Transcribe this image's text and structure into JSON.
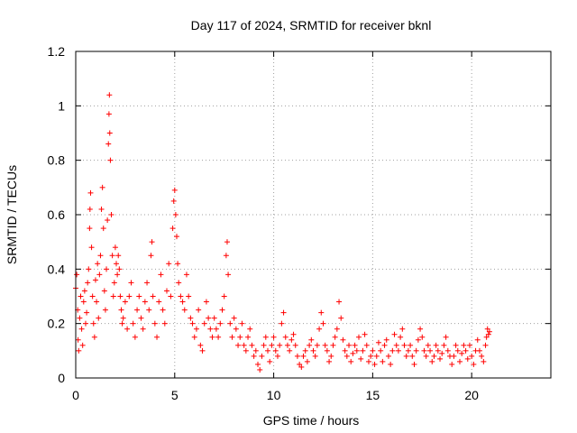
{
  "chart_data": {
    "type": "scatter",
    "title": "Day 117 of 2024, SRMTID for receiver bknl",
    "xlabel": "GPS time / hours",
    "ylabel": "SRMTID / TECUs",
    "xlim": [
      0,
      24
    ],
    "ylim": [
      0,
      1.2
    ],
    "xticks": [
      0,
      5,
      10,
      15,
      20
    ],
    "xtick_labels": [
      "0",
      "5",
      "10",
      "15",
      "20"
    ],
    "yticks": [
      0,
      0.2,
      0.4,
      0.6,
      0.8,
      1.0,
      1.2
    ],
    "ytick_labels": [
      "0",
      "0.2",
      "0.4",
      "0.6",
      "0.8",
      "1",
      "1.2"
    ],
    "grid": true,
    "marker": "+",
    "color": "#ff0000",
    "series": [
      {
        "name": "SRMTID",
        "points": [
          [
            0.0,
            0.33
          ],
          [
            0.05,
            0.38
          ],
          [
            0.1,
            0.25
          ],
          [
            0.12,
            0.14
          ],
          [
            0.15,
            0.1
          ],
          [
            0.2,
            0.22
          ],
          [
            0.25,
            0.3
          ],
          [
            0.3,
            0.18
          ],
          [
            0.35,
            0.12
          ],
          [
            0.4,
            0.28
          ],
          [
            0.45,
            0.32
          ],
          [
            0.5,
            0.2
          ],
          [
            0.55,
            0.24
          ],
          [
            0.6,
            0.35
          ],
          [
            0.65,
            0.4
          ],
          [
            0.7,
            0.55
          ],
          [
            0.72,
            0.62
          ],
          [
            0.75,
            0.68
          ],
          [
            0.8,
            0.48
          ],
          [
            0.85,
            0.3
          ],
          [
            0.9,
            0.2
          ],
          [
            0.95,
            0.15
          ],
          [
            1.0,
            0.36
          ],
          [
            1.05,
            0.28
          ],
          [
            1.1,
            0.42
          ],
          [
            1.15,
            0.22
          ],
          [
            1.2,
            0.38
          ],
          [
            1.25,
            0.45
          ],
          [
            1.3,
            0.62
          ],
          [
            1.35,
            0.7
          ],
          [
            1.4,
            0.55
          ],
          [
            1.45,
            0.32
          ],
          [
            1.5,
            0.25
          ],
          [
            1.55,
            0.4
          ],
          [
            1.6,
            0.58
          ],
          [
            1.65,
            0.86
          ],
          [
            1.68,
            0.97
          ],
          [
            1.7,
            1.04
          ],
          [
            1.72,
            0.9
          ],
          [
            1.75,
            0.8
          ],
          [
            1.8,
            0.6
          ],
          [
            1.85,
            0.45
          ],
          [
            1.9,
            0.3
          ],
          [
            1.95,
            0.35
          ],
          [
            2.0,
            0.48
          ],
          [
            2.05,
            0.42
          ],
          [
            2.1,
            0.38
          ],
          [
            2.15,
            0.45
          ],
          [
            2.2,
            0.4
          ],
          [
            2.25,
            0.3
          ],
          [
            2.3,
            0.25
          ],
          [
            2.35,
            0.2
          ],
          [
            2.4,
            0.22
          ],
          [
            2.5,
            0.28
          ],
          [
            2.6,
            0.18
          ],
          [
            2.7,
            0.3
          ],
          [
            2.8,
            0.35
          ],
          [
            2.9,
            0.2
          ],
          [
            3.0,
            0.15
          ],
          [
            3.1,
            0.25
          ],
          [
            3.2,
            0.3
          ],
          [
            3.3,
            0.22
          ],
          [
            3.4,
            0.18
          ],
          [
            3.5,
            0.28
          ],
          [
            3.6,
            0.35
          ],
          [
            3.7,
            0.25
          ],
          [
            3.8,
            0.45
          ],
          [
            3.85,
            0.5
          ],
          [
            3.9,
            0.3
          ],
          [
            4.0,
            0.2
          ],
          [
            4.1,
            0.15
          ],
          [
            4.2,
            0.28
          ],
          [
            4.3,
            0.38
          ],
          [
            4.4,
            0.25
          ],
          [
            4.5,
            0.2
          ],
          [
            4.6,
            0.32
          ],
          [
            4.7,
            0.42
          ],
          [
            4.8,
            0.3
          ],
          [
            4.9,
            0.55
          ],
          [
            4.95,
            0.65
          ],
          [
            5.0,
            0.69
          ],
          [
            5.05,
            0.6
          ],
          [
            5.1,
            0.52
          ],
          [
            5.15,
            0.42
          ],
          [
            5.2,
            0.35
          ],
          [
            5.3,
            0.3
          ],
          [
            5.4,
            0.28
          ],
          [
            5.5,
            0.25
          ],
          [
            5.6,
            0.38
          ],
          [
            5.7,
            0.3
          ],
          [
            5.8,
            0.22
          ],
          [
            5.9,
            0.2
          ],
          [
            6.0,
            0.15
          ],
          [
            6.1,
            0.18
          ],
          [
            6.2,
            0.25
          ],
          [
            6.3,
            0.12
          ],
          [
            6.4,
            0.1
          ],
          [
            6.5,
            0.2
          ],
          [
            6.6,
            0.28
          ],
          [
            6.7,
            0.22
          ],
          [
            6.8,
            0.18
          ],
          [
            6.9,
            0.15
          ],
          [
            7.0,
            0.22
          ],
          [
            7.1,
            0.18
          ],
          [
            7.2,
            0.15
          ],
          [
            7.3,
            0.2
          ],
          [
            7.4,
            0.25
          ],
          [
            7.5,
            0.3
          ],
          [
            7.6,
            0.45
          ],
          [
            7.65,
            0.5
          ],
          [
            7.7,
            0.38
          ],
          [
            7.8,
            0.2
          ],
          [
            7.9,
            0.15
          ],
          [
            8.0,
            0.22
          ],
          [
            8.1,
            0.18
          ],
          [
            8.2,
            0.12
          ],
          [
            8.3,
            0.15
          ],
          [
            8.4,
            0.2
          ],
          [
            8.5,
            0.12
          ],
          [
            8.6,
            0.1
          ],
          [
            8.7,
            0.15
          ],
          [
            8.8,
            0.18
          ],
          [
            8.9,
            0.12
          ],
          [
            9.0,
            0.08
          ],
          [
            9.1,
            0.1
          ],
          [
            9.2,
            0.05
          ],
          [
            9.3,
            0.03
          ],
          [
            9.4,
            0.08
          ],
          [
            9.5,
            0.12
          ],
          [
            9.6,
            0.15
          ],
          [
            9.7,
            0.1
          ],
          [
            9.8,
            0.06
          ],
          [
            9.9,
            0.12
          ],
          [
            10.0,
            0.15
          ],
          [
            10.1,
            0.1
          ],
          [
            10.2,
            0.08
          ],
          [
            10.3,
            0.12
          ],
          [
            10.4,
            0.2
          ],
          [
            10.5,
            0.24
          ],
          [
            10.6,
            0.15
          ],
          [
            10.7,
            0.12
          ],
          [
            10.8,
            0.1
          ],
          [
            10.9,
            0.14
          ],
          [
            11.0,
            0.16
          ],
          [
            11.1,
            0.12
          ],
          [
            11.2,
            0.08
          ],
          [
            11.3,
            0.05
          ],
          [
            11.4,
            0.04
          ],
          [
            11.5,
            0.08
          ],
          [
            11.6,
            0.1
          ],
          [
            11.7,
            0.06
          ],
          [
            11.8,
            0.12
          ],
          [
            11.9,
            0.14
          ],
          [
            12.0,
            0.1
          ],
          [
            12.1,
            0.08
          ],
          [
            12.2,
            0.12
          ],
          [
            12.3,
            0.18
          ],
          [
            12.4,
            0.24
          ],
          [
            12.5,
            0.2
          ],
          [
            12.6,
            0.12
          ],
          [
            12.7,
            0.1
          ],
          [
            12.8,
            0.06
          ],
          [
            12.9,
            0.08
          ],
          [
            13.0,
            0.12
          ],
          [
            13.1,
            0.15
          ],
          [
            13.2,
            0.18
          ],
          [
            13.3,
            0.28
          ],
          [
            13.4,
            0.22
          ],
          [
            13.5,
            0.14
          ],
          [
            13.6,
            0.1
          ],
          [
            13.7,
            0.08
          ],
          [
            13.8,
            0.12
          ],
          [
            13.9,
            0.06
          ],
          [
            14.0,
            0.09
          ],
          [
            14.1,
            0.12
          ],
          [
            14.2,
            0.1
          ],
          [
            14.3,
            0.15
          ],
          [
            14.4,
            0.07
          ],
          [
            14.5,
            0.1
          ],
          [
            14.6,
            0.16
          ],
          [
            14.7,
            0.12
          ],
          [
            14.8,
            0.06
          ],
          [
            14.9,
            0.08
          ],
          [
            15.0,
            0.1
          ],
          [
            15.1,
            0.05
          ],
          [
            15.2,
            0.08
          ],
          [
            15.3,
            0.13
          ],
          [
            15.4,
            0.1
          ],
          [
            15.5,
            0.06
          ],
          [
            15.6,
            0.12
          ],
          [
            15.7,
            0.14
          ],
          [
            15.8,
            0.08
          ],
          [
            15.9,
            0.05
          ],
          [
            16.0,
            0.1
          ],
          [
            16.1,
            0.16
          ],
          [
            16.2,
            0.12
          ],
          [
            16.3,
            0.1
          ],
          [
            16.4,
            0.15
          ],
          [
            16.5,
            0.18
          ],
          [
            16.6,
            0.12
          ],
          [
            16.7,
            0.08
          ],
          [
            16.8,
            0.1
          ],
          [
            16.9,
            0.12
          ],
          [
            17.0,
            0.08
          ],
          [
            17.1,
            0.05
          ],
          [
            17.2,
            0.1
          ],
          [
            17.3,
            0.14
          ],
          [
            17.4,
            0.18
          ],
          [
            17.5,
            0.15
          ],
          [
            17.6,
            0.1
          ],
          [
            17.7,
            0.08
          ],
          [
            17.8,
            0.12
          ],
          [
            17.9,
            0.1
          ],
          [
            18.0,
            0.06
          ],
          [
            18.1,
            0.08
          ],
          [
            18.2,
            0.12
          ],
          [
            18.3,
            0.1
          ],
          [
            18.4,
            0.07
          ],
          [
            18.5,
            0.09
          ],
          [
            18.6,
            0.12
          ],
          [
            18.7,
            0.15
          ],
          [
            18.8,
            0.1
          ],
          [
            18.9,
            0.08
          ],
          [
            19.0,
            0.05
          ],
          [
            19.1,
            0.08
          ],
          [
            19.2,
            0.12
          ],
          [
            19.3,
            0.1
          ],
          [
            19.4,
            0.06
          ],
          [
            19.5,
            0.09
          ],
          [
            19.6,
            0.12
          ],
          [
            19.7,
            0.1
          ],
          [
            19.8,
            0.07
          ],
          [
            19.9,
            0.12
          ],
          [
            20.0,
            0.08
          ],
          [
            20.1,
            0.05
          ],
          [
            20.2,
            0.1
          ],
          [
            20.3,
            0.14
          ],
          [
            20.4,
            0.1
          ],
          [
            20.5,
            0.08
          ],
          [
            20.6,
            0.06
          ],
          [
            20.7,
            0.12
          ],
          [
            20.75,
            0.15
          ],
          [
            20.8,
            0.18
          ],
          [
            20.85,
            0.16
          ],
          [
            20.9,
            0.17
          ]
        ]
      }
    ]
  }
}
